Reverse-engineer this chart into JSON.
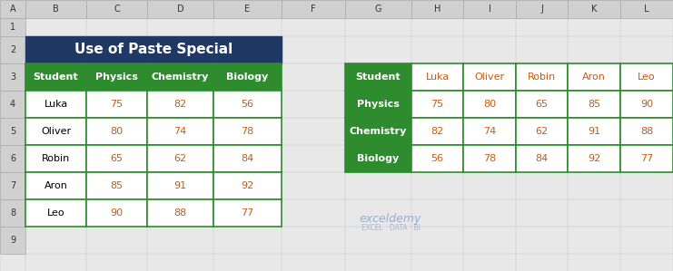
{
  "title": "Use of Paste Special",
  "title_bg": "#1F3864",
  "title_color": "#FFFFFF",
  "header_bg": "#2E8B2E",
  "header_color": "#FFFFFF",
  "cell_bg": "#FFFFFF",
  "cell_color": "#000000",
  "data_color": "#C55A11",
  "grid_color": "#2E8B2E",
  "col_header_color": "#C55A11",
  "left_table": {
    "headers": [
      "Student",
      "Physics",
      "Chemistry",
      "Biology"
    ],
    "rows": [
      [
        "Luka",
        75,
        82,
        56
      ],
      [
        "Oliver",
        80,
        74,
        78
      ],
      [
        "Robin",
        65,
        62,
        84
      ],
      [
        "Aron",
        85,
        91,
        92
      ],
      [
        "Leo",
        90,
        88,
        77
      ]
    ]
  },
  "right_table": {
    "col_headers": [
      "Student",
      "Luka",
      "Oliver",
      "Robin",
      "Aron",
      "Leo"
    ],
    "rows": [
      [
        "Physics",
        75,
        80,
        65,
        85,
        90
      ],
      [
        "Chemistry",
        82,
        74,
        62,
        91,
        88
      ],
      [
        "Biology",
        56,
        78,
        84,
        92,
        77
      ]
    ]
  },
  "bg_color": "#E8E8E8",
  "excel_col_labels": [
    "A",
    "B",
    "C",
    "D",
    "E",
    "F",
    "G",
    "H",
    "I",
    "J",
    "K",
    "L"
  ],
  "excel_row_labels": [
    "1",
    "2",
    "3",
    "4",
    "5",
    "6",
    "7",
    "8",
    "9"
  ]
}
